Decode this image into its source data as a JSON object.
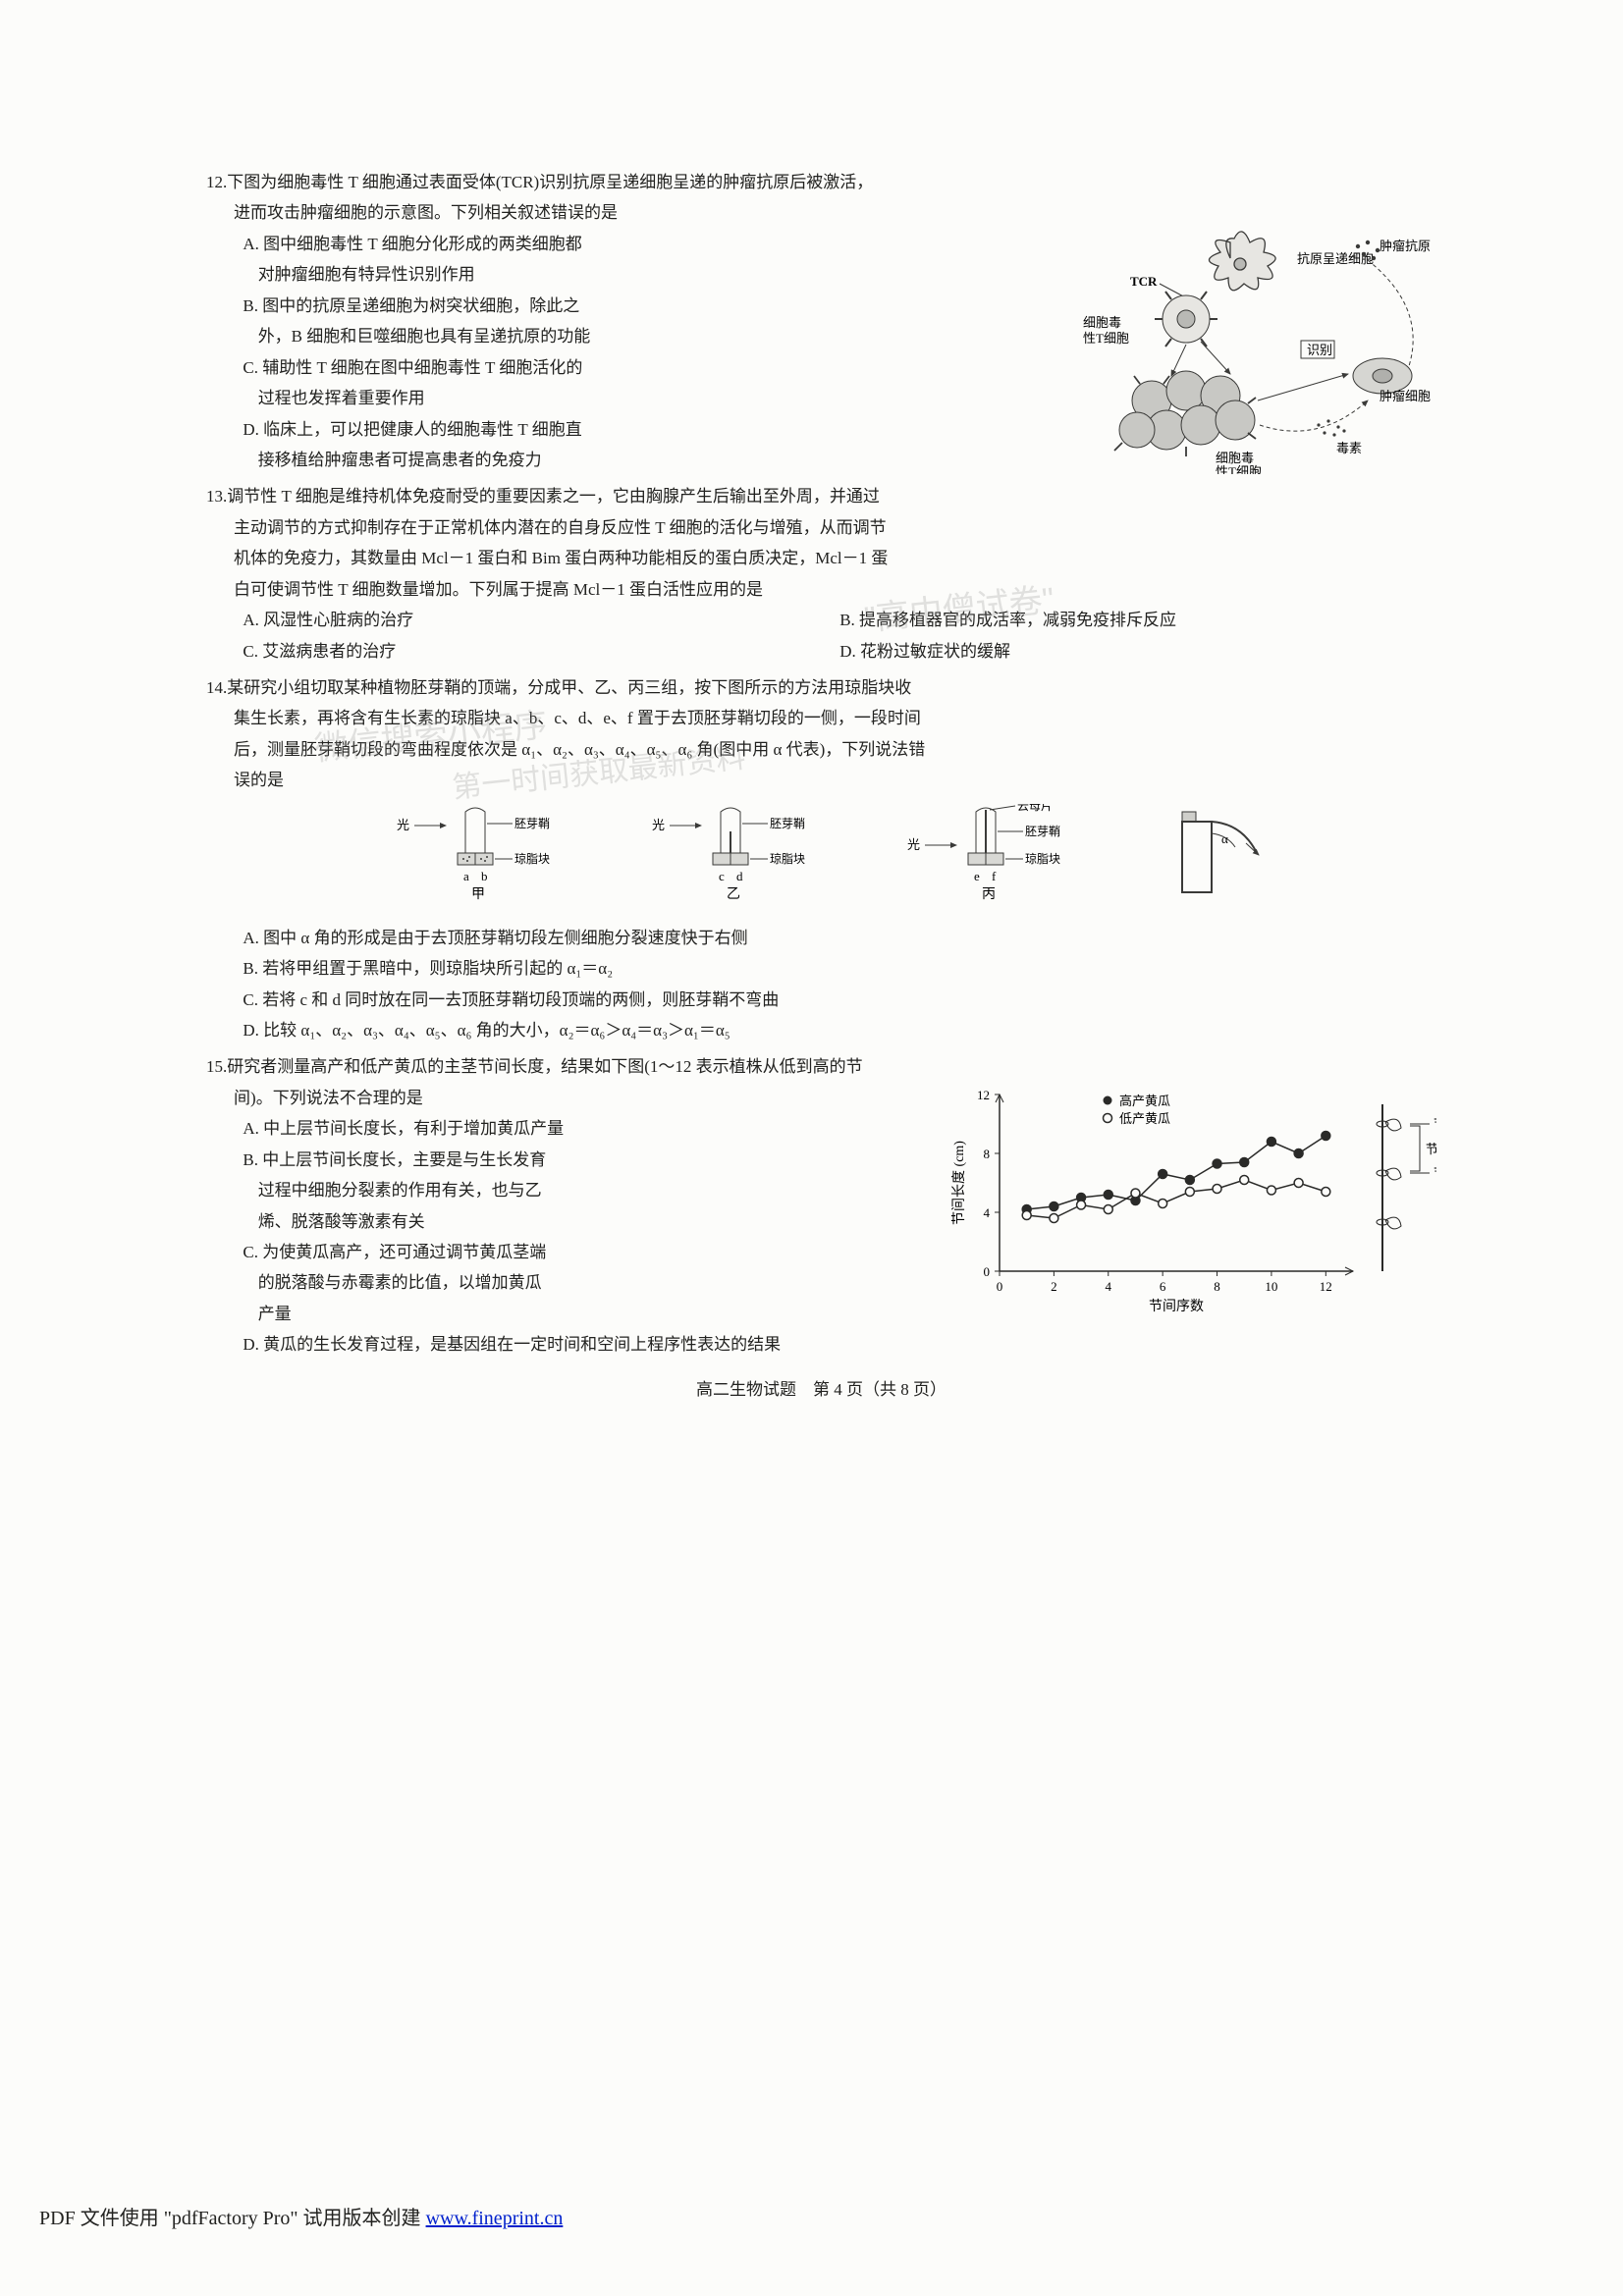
{
  "colors": {
    "text": "#222220",
    "bg": "#fcfcfa",
    "link": "#0020cc",
    "figLine": "#3a3a38",
    "figFill": "#b9b9b5",
    "figLight": "#e7e6e2",
    "watermark": "rgba(150,150,150,0.28)"
  },
  "q12": {
    "num": "12.",
    "stem1": "下图为细胞毒性 T 细胞通过表面受体(TCR)识别抗原呈递细胞呈递的肿瘤抗原后被激活，",
    "stem2": "进而攻击肿瘤细胞的示意图。下列相关叙述错误的是",
    "A1": "A. 图中细胞毒性 T 细胞分化形成的两类细胞都",
    "A2": "对肿瘤细胞有特异性识别作用",
    "B1": "B. 图中的抗原呈递细胞为树突状细胞，除此之",
    "B2": "外，B 细胞和巨噬细胞也具有呈递抗原的功能",
    "C1": "C. 辅助性 T 细胞在图中细胞毒性 T 细胞活化的",
    "C2": "过程也发挥着重要作用",
    "D1": "D. 临床上，可以把健康人的细胞毒性 T 细胞直",
    "D2": "接移植给肿瘤患者可提高患者的免疫力",
    "fig": {
      "lbl_tcr": "TCR",
      "lbl_apc": "抗原呈递细胞",
      "lbl_tumor_ag": "肿瘤抗原",
      "lbl_ctT1a": "细胞毒",
      "lbl_ctT1b": "性T细胞",
      "lbl_ctT2a": "细胞毒",
      "lbl_ctT2b": "性T细胞",
      "lbl_recog": "识别",
      "lbl_tumor": "肿瘤细胞",
      "lbl_toxin": "毒素"
    }
  },
  "q13": {
    "num": "13.",
    "line1": "调节性 T 细胞是维持机体免疫耐受的重要因素之一，它由胸腺产生后输出至外周，并通过",
    "line2": "主动调节的方式抑制存在于正常机体内潜在的自身反应性 T 细胞的活化与增殖，从而调节",
    "line3": "机体的免疫力，其数量由 Mcl－1 蛋白和 Bim 蛋白两种功能相反的蛋白质决定，Mcl－1 蛋",
    "line4": "白可使调节性 T 细胞数量增加。下列属于提高 Mcl－1 蛋白活性应用的是",
    "A": "A. 风湿性心脏病的治疗",
    "B": "B. 提高移植器官的成活率，减弱免疫排斥反应",
    "C": "C. 艾滋病患者的治疗",
    "D": "D. 花粉过敏症状的缓解"
  },
  "q14": {
    "num": "14.",
    "line1": "某研究小组切取某种植物胚芽鞘的顶端，分成甲、乙、丙三组，按下图所示的方法用琼脂块收",
    "line2": "集生长素，再将含有生长素的琼脂块 a、b、c、d、e、f 置于去顶胚芽鞘切段的一侧，一段时间",
    "line3": "后，测量胚芽鞘切段的弯曲程度依次是 α₁、α₂、α₃、α₄、α₅、α₆ 角(图中用 α 代表)，下列说法错",
    "line4": "误的是",
    "fig": {
      "light": "光",
      "coleoptile": "胚芽鞘",
      "agar": "琼脂块",
      "mica": "云母片",
      "a": "a",
      "b": "b",
      "c": "c",
      "d": "d",
      "e": "e",
      "f": "f",
      "jia": "甲",
      "yi": "乙",
      "bing": "丙",
      "alpha": "α"
    },
    "A": "A. 图中 α 角的形成是由于去顶胚芽鞘切段左侧细胞分裂速度快于右侧",
    "B": "B. 若将甲组置于黑暗中，则琼脂块所引起的 α₁＝α₂",
    "C": "C. 若将 c 和 d 同时放在同一去顶胚芽鞘切段顶端的两侧，则胚芽鞘不弯曲",
    "D": "D. 比较 α₁、α₂、α₃、α₄、α₅、α₆ 角的大小，α₂＝α₆＞α₄＝α₃＞α₁＝α₅"
  },
  "q15": {
    "num": "15.",
    "line1": "研究者测量高产和低产黄瓜的主茎节间长度，结果如下图(1～12 表示植株从低到高的节",
    "line2": "间)。下列说法不合理的是",
    "A": "A. 中上层节间长度长，有利于增加黄瓜产量",
    "B1": "B. 中上层节间长度长，主要是与生长发育",
    "B2": "过程中细胞分裂素的作用有关，也与乙",
    "B3": "烯、脱落酸等激素有关",
    "C1": "C. 为使黄瓜高产，还可通过调节黄瓜茎端",
    "C2": "的脱落酸与赤霉素的比值，以增加黄瓜",
    "C3": "产量",
    "D": "D. 黄瓜的生长发育过程，是基因组在一定时间和空间上程序性表达的结果",
    "chart": {
      "type": "scatter-line",
      "xlabel": "节间序数",
      "ylabel": "节间长度 (cm)",
      "legend_high": "高产黄瓜",
      "legend_low": "低产黄瓜",
      "xlim": [
        0,
        13
      ],
      "ylim": [
        0,
        12
      ],
      "xticks": [
        0,
        2,
        4,
        6,
        8,
        10,
        12
      ],
      "yticks": [
        0,
        4,
        8,
        12
      ],
      "high_color": "#2a2a28",
      "low_color": "#2a2a28",
      "high_marker": "filled-circle",
      "low_marker": "open-circle",
      "series_high": [
        {
          "x": 1,
          "y": 4.2
        },
        {
          "x": 2,
          "y": 4.4
        },
        {
          "x": 3,
          "y": 5.0
        },
        {
          "x": 4,
          "y": 5.2
        },
        {
          "x": 5,
          "y": 4.8
        },
        {
          "x": 6,
          "y": 6.6
        },
        {
          "x": 7,
          "y": 6.2
        },
        {
          "x": 8,
          "y": 7.3
        },
        {
          "x": 9,
          "y": 7.4
        },
        {
          "x": 10,
          "y": 8.8
        },
        {
          "x": 11,
          "y": 8.0
        },
        {
          "x": 12,
          "y": 9.2
        }
      ],
      "series_low": [
        {
          "x": 1,
          "y": 3.8
        },
        {
          "x": 2,
          "y": 3.6
        },
        {
          "x": 3,
          "y": 4.5
        },
        {
          "x": 4,
          "y": 4.2
        },
        {
          "x": 5,
          "y": 5.3
        },
        {
          "x": 6,
          "y": 4.6
        },
        {
          "x": 7,
          "y": 5.4
        },
        {
          "x": 8,
          "y": 5.6
        },
        {
          "x": 9,
          "y": 6.2
        },
        {
          "x": 10,
          "y": 5.5
        },
        {
          "x": 11,
          "y": 6.0
        },
        {
          "x": 12,
          "y": 5.4
        }
      ]
    },
    "stem_fig": {
      "jie": "节",
      "jiejian": "节间"
    }
  },
  "footer": "高二生物试题　第 4 页（共 8 页）",
  "pdf_footer_text": "PDF 文件使用 \"pdfFactory Pro\" 试用版本创建 ",
  "pdf_footer_link": "www.fineprint.cn",
  "watermarks": {
    "w1": "微信搜索小程序",
    "w2": "第一时间获取最新资料",
    "w3": "\"高中僧试卷\""
  }
}
